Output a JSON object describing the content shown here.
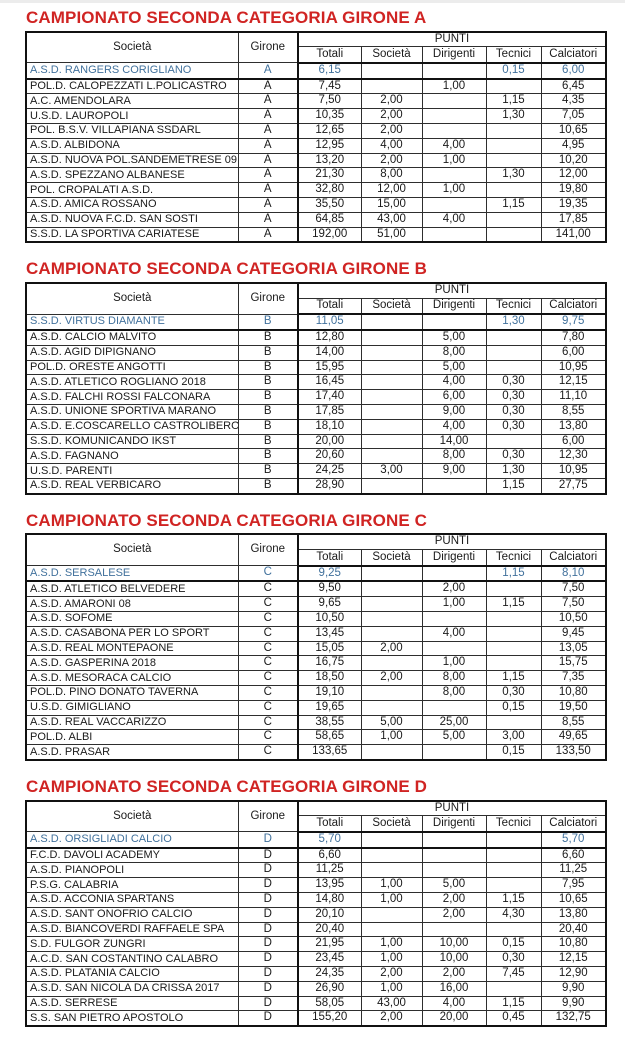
{
  "colors": {
    "title_red": "#d02423",
    "highlight_blue": "#41719c",
    "border_black": "#111111",
    "page_background": "#ffffff"
  },
  "columns": {
    "societa": "Società",
    "girone": "Girone",
    "punti_group": "PUNTI",
    "punti_sub": {
      "totali": "Totali",
      "societa": "Società",
      "dirigenti": "Dirigenti",
      "tecnici": "Tecnici",
      "calciatori": "Calciatori"
    }
  },
  "sections": [
    {
      "title": "CAMPIONATO SECONDA CATEGORIA GIRONE A",
      "rows": [
        {
          "societa": "A.S.D. RANGERS CORIGLIANO",
          "girone": "A",
          "totali": "6,15",
          "punti_societa": "",
          "dirigenti": "",
          "tecnici": "0,15",
          "calciatori": "6,00",
          "highlight": true
        },
        {
          "societa": "POL.D. CALOPEZZATI L.POLICASTRO",
          "girone": "A",
          "totali": "7,45",
          "punti_societa": "",
          "dirigenti": "1,00",
          "tecnici": "",
          "calciatori": "6,45",
          "highlight": false
        },
        {
          "societa": "A.C. AMENDOLARA",
          "girone": "A",
          "totali": "7,50",
          "punti_societa": "2,00",
          "dirigenti": "",
          "tecnici": "1,15",
          "calciatori": "4,35",
          "highlight": false
        },
        {
          "societa": "U.S.D. LAUROPOLI",
          "girone": "A",
          "totali": "10,35",
          "punti_societa": "2,00",
          "dirigenti": "",
          "tecnici": "1,30",
          "calciatori": "7,05",
          "highlight": false
        },
        {
          "societa": "POL. B.S.V. VILLAPIANA SSDARL",
          "girone": "A",
          "totali": "12,65",
          "punti_societa": "2,00",
          "dirigenti": "",
          "tecnici": "",
          "calciatori": "10,65",
          "highlight": false
        },
        {
          "societa": "A.S.D. ALBIDONA",
          "girone": "A",
          "totali": "12,95",
          "punti_societa": "4,00",
          "dirigenti": "4,00",
          "tecnici": "",
          "calciatori": "4,95",
          "highlight": false
        },
        {
          "societa": "A.S.D. NUOVA POL.SANDEMETRESE 09",
          "girone": "A",
          "totali": "13,20",
          "punti_societa": "2,00",
          "dirigenti": "1,00",
          "tecnici": "",
          "calciatori": "10,20",
          "highlight": false
        },
        {
          "societa": "A.S.D. SPEZZANO ALBANESE",
          "girone": "A",
          "totali": "21,30",
          "punti_societa": "8,00",
          "dirigenti": "",
          "tecnici": "1,30",
          "calciatori": "12,00",
          "highlight": false
        },
        {
          "societa": "POL. CROPALATI A.S.D.",
          "girone": "A",
          "totali": "32,80",
          "punti_societa": "12,00",
          "dirigenti": "1,00",
          "tecnici": "",
          "calciatori": "19,80",
          "highlight": false
        },
        {
          "societa": "A.S.D. AMICA ROSSANO",
          "girone": "A",
          "totali": "35,50",
          "punti_societa": "15,00",
          "dirigenti": "",
          "tecnici": "1,15",
          "calciatori": "19,35",
          "highlight": false
        },
        {
          "societa": "A.S.D. NUOVA F.C.D. SAN SOSTI",
          "girone": "A",
          "totali": "64,85",
          "punti_societa": "43,00",
          "dirigenti": "4,00",
          "tecnici": "",
          "calciatori": "17,85",
          "highlight": false
        },
        {
          "societa": "S.S.D. LA SPORTIVA CARIATESE",
          "girone": "A",
          "totali": "192,00",
          "punti_societa": "51,00",
          "dirigenti": "",
          "tecnici": "",
          "calciatori": "141,00",
          "highlight": false
        }
      ]
    },
    {
      "title": "CAMPIONATO SECONDA CATEGORIA GIRONE B",
      "rows": [
        {
          "societa": "S.S.D. VIRTUS DIAMANTE",
          "girone": "B",
          "totali": "11,05",
          "punti_societa": "",
          "dirigenti": "",
          "tecnici": "1,30",
          "calciatori": "9,75",
          "highlight": true
        },
        {
          "societa": "A.S.D. CALCIO MALVITO",
          "girone": "B",
          "totali": "12,80",
          "punti_societa": "",
          "dirigenti": "5,00",
          "tecnici": "",
          "calciatori": "7,80",
          "highlight": false
        },
        {
          "societa": "A.S.D. AGID DIPIGNANO",
          "girone": "B",
          "totali": "14,00",
          "punti_societa": "",
          "dirigenti": "8,00",
          "tecnici": "",
          "calciatori": "6,00",
          "highlight": false
        },
        {
          "societa": "POL.D. ORESTE ANGOTTI",
          "girone": "B",
          "totali": "15,95",
          "punti_societa": "",
          "dirigenti": "5,00",
          "tecnici": "",
          "calciatori": "10,95",
          "highlight": false
        },
        {
          "societa": "A.S.D. ATLETICO ROGLIANO 2018",
          "girone": "B",
          "totali": "16,45",
          "punti_societa": "",
          "dirigenti": "4,00",
          "tecnici": "0,30",
          "calciatori": "12,15",
          "highlight": false
        },
        {
          "societa": "A.S.D. FALCHI ROSSI FALCONARA",
          "girone": "B",
          "totali": "17,40",
          "punti_societa": "",
          "dirigenti": "6,00",
          "tecnici": "0,30",
          "calciatori": "11,10",
          "highlight": false
        },
        {
          "societa": "A.S.D. UNIONE SPORTIVA MARANO",
          "girone": "B",
          "totali": "17,85",
          "punti_societa": "",
          "dirigenti": "9,00",
          "tecnici": "0,30",
          "calciatori": "8,55",
          "highlight": false
        },
        {
          "societa": "A.S.D. E.COSCARELLO CASTROLIBERO",
          "girone": "B",
          "totali": "18,10",
          "punti_societa": "",
          "dirigenti": "4,00",
          "tecnici": "0,30",
          "calciatori": "13,80",
          "highlight": false
        },
        {
          "societa": "S.S.D. KOMUNICANDO IKST",
          "girone": "B",
          "totali": "20,00",
          "punti_societa": "",
          "dirigenti": "14,00",
          "tecnici": "",
          "calciatori": "6,00",
          "highlight": false
        },
        {
          "societa": "A.S.D. FAGNANO",
          "girone": "B",
          "totali": "20,60",
          "punti_societa": "",
          "dirigenti": "8,00",
          "tecnici": "0,30",
          "calciatori": "12,30",
          "highlight": false
        },
        {
          "societa": "U.S.D. PARENTI",
          "girone": "B",
          "totali": "24,25",
          "punti_societa": "3,00",
          "dirigenti": "9,00",
          "tecnici": "1,30",
          "calciatori": "10,95",
          "highlight": false
        },
        {
          "societa": "A.S.D. REAL VERBICARO",
          "girone": "B",
          "totali": "28,90",
          "punti_societa": "",
          "dirigenti": "",
          "tecnici": "1,15",
          "calciatori": "27,75",
          "highlight": false
        }
      ]
    },
    {
      "title": "CAMPIONATO SECONDA CATEGORIA GIRONE C",
      "rows": [
        {
          "societa": "A.S.D. SERSALESE",
          "girone": "C",
          "totali": "9,25",
          "punti_societa": "",
          "dirigenti": "",
          "tecnici": "1,15",
          "calciatori": "8,10",
          "highlight": true
        },
        {
          "societa": "A.S.D. ATLETICO BELVEDERE",
          "girone": "C",
          "totali": "9,50",
          "punti_societa": "",
          "dirigenti": "2,00",
          "tecnici": "",
          "calciatori": "7,50",
          "highlight": false
        },
        {
          "societa": "A.S.D. AMARONI 08",
          "girone": "C",
          "totali": "9,65",
          "punti_societa": "",
          "dirigenti": "1,00",
          "tecnici": "1,15",
          "calciatori": "7,50",
          "highlight": false
        },
        {
          "societa": "A.S.D. SOFOME",
          "girone": "C",
          "totali": "10,50",
          "punti_societa": "",
          "dirigenti": "",
          "tecnici": "",
          "calciatori": "10,50",
          "highlight": false
        },
        {
          "societa": "A.S.D. CASABONA PER LO SPORT",
          "girone": "C",
          "totali": "13,45",
          "punti_societa": "",
          "dirigenti": "4,00",
          "tecnici": "",
          "calciatori": "9,45",
          "highlight": false
        },
        {
          "societa": "A.S.D. REAL MONTEPAONE",
          "girone": "C",
          "totali": "15,05",
          "punti_societa": "2,00",
          "dirigenti": "",
          "tecnici": "",
          "calciatori": "13,05",
          "highlight": false
        },
        {
          "societa": "A.S.D. GASPERINA 2018",
          "girone": "C",
          "totali": "16,75",
          "punti_societa": "",
          "dirigenti": "1,00",
          "tecnici": "",
          "calciatori": "15,75",
          "highlight": false
        },
        {
          "societa": "A.S.D. MESORACA CALCIO",
          "girone": "C",
          "totali": "18,50",
          "punti_societa": "2,00",
          "dirigenti": "8,00",
          "tecnici": "1,15",
          "calciatori": "7,35",
          "highlight": false
        },
        {
          "societa": "POL.D. PINO DONATO TAVERNA",
          "girone": "C",
          "totali": "19,10",
          "punti_societa": "",
          "dirigenti": "8,00",
          "tecnici": "0,30",
          "calciatori": "10,80",
          "highlight": false
        },
        {
          "societa": "U.S.D. GIMIGLIANO",
          "girone": "C",
          "totali": "19,65",
          "punti_societa": "",
          "dirigenti": "",
          "tecnici": "0,15",
          "calciatori": "19,50",
          "highlight": false
        },
        {
          "societa": "A.S.D. REAL VACCARIZZO",
          "girone": "C",
          "totali": "38,55",
          "punti_societa": "5,00",
          "dirigenti": "25,00",
          "tecnici": "",
          "calciatori": "8,55",
          "highlight": false
        },
        {
          "societa": "POL.D. ALBI",
          "girone": "C",
          "totali": "58,65",
          "punti_societa": "1,00",
          "dirigenti": "5,00",
          "tecnici": "3,00",
          "calciatori": "49,65",
          "highlight": false
        },
        {
          "societa": "A.S.D. PRASAR",
          "girone": "C",
          "totali": "133,65",
          "punti_societa": "",
          "dirigenti": "",
          "tecnici": "0,15",
          "calciatori": "133,50",
          "highlight": false
        }
      ]
    },
    {
      "title": "CAMPIONATO SECONDA CATEGORIA GIRONE D",
      "rows": [
        {
          "societa": "A.S.D. ORSIGLIADI CALCIO",
          "girone": "D",
          "totali": "5,70",
          "punti_societa": "",
          "dirigenti": "",
          "tecnici": "",
          "calciatori": "5,70",
          "highlight": true
        },
        {
          "societa": "F.C.D. DAVOLI ACADEMY",
          "girone": "D",
          "totali": "6,60",
          "punti_societa": "",
          "dirigenti": "",
          "tecnici": "",
          "calciatori": "6,60",
          "highlight": false
        },
        {
          "societa": "A.S.D. PIANOPOLI",
          "girone": "D",
          "totali": "11,25",
          "punti_societa": "",
          "dirigenti": "",
          "tecnici": "",
          "calciatori": "11,25",
          "highlight": false
        },
        {
          "societa": "P.S.G. CALABRIA",
          "girone": "D",
          "totali": "13,95",
          "punti_societa": "1,00",
          "dirigenti": "5,00",
          "tecnici": "",
          "calciatori": "7,95",
          "highlight": false
        },
        {
          "societa": "A.S.D. ACCONIA SPARTANS",
          "girone": "D",
          "totali": "14,80",
          "punti_societa": "1,00",
          "dirigenti": "2,00",
          "tecnici": "1,15",
          "calciatori": "10,65",
          "highlight": false
        },
        {
          "societa": "A.S.D. SANT ONOFRIO CALCIO",
          "girone": "D",
          "totali": "20,10",
          "punti_societa": "",
          "dirigenti": "2,00",
          "tecnici": "4,30",
          "calciatori": "13,80",
          "highlight": false
        },
        {
          "societa": "A.S.D. BIANCOVERDI RAFFAELE SPA",
          "girone": "D",
          "totali": "20,40",
          "punti_societa": "",
          "dirigenti": "",
          "tecnici": "",
          "calciatori": "20,40",
          "highlight": false
        },
        {
          "societa": "S.D. FULGOR ZUNGRI",
          "girone": "D",
          "totali": "21,95",
          "punti_societa": "1,00",
          "dirigenti": "10,00",
          "tecnici": "0,15",
          "calciatori": "10,80",
          "highlight": false
        },
        {
          "societa": "A.C.D. SAN COSTANTINO CALABRO",
          "girone": "D",
          "totali": "23,45",
          "punti_societa": "1,00",
          "dirigenti": "10,00",
          "tecnici": "0,30",
          "calciatori": "12,15",
          "highlight": false
        },
        {
          "societa": "A.S.D. PLATANIA CALCIO",
          "girone": "D",
          "totali": "24,35",
          "punti_societa": "2,00",
          "dirigenti": "2,00",
          "tecnici": "7,45",
          "calciatori": "12,90",
          "highlight": false
        },
        {
          "societa": "A.S.D. SAN NICOLA DA CRISSA 2017",
          "girone": "D",
          "totali": "26,90",
          "punti_societa": "1,00",
          "dirigenti": "16,00",
          "tecnici": "",
          "calciatori": "9,90",
          "highlight": false
        },
        {
          "societa": "A.S.D. SERRESE",
          "girone": "D",
          "totali": "58,05",
          "punti_societa": "43,00",
          "dirigenti": "4,00",
          "tecnici": "1,15",
          "calciatori": "9,90",
          "highlight": false
        },
        {
          "societa": "S.S. SAN PIETRO APOSTOLO",
          "girone": "D",
          "totali": "155,20",
          "punti_societa": "2,00",
          "dirigenti": "20,00",
          "tecnici": "0,45",
          "calciatori": "132,75",
          "highlight": false
        }
      ]
    }
  ]
}
